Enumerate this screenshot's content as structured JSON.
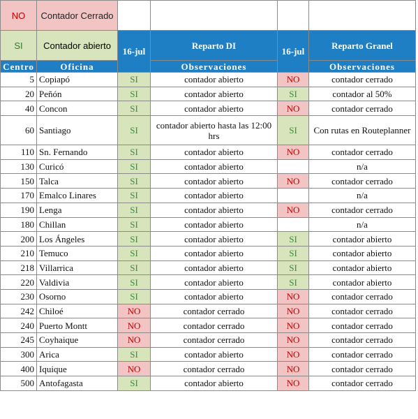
{
  "legend": {
    "no_label": "NO",
    "no_text": "Contador Cerrado",
    "si_label": "SI",
    "si_text": "Contador abierto"
  },
  "headers": {
    "date_di": "16-jul",
    "reparto_di": "Reparto DI",
    "date_granel": "16-jul",
    "reparto_granel": "Reparto Granel",
    "centro": "Centro",
    "oficina": "Oficina",
    "observaciones_di": "Observaciones",
    "observaciones_granel": "Observaciones"
  },
  "colors": {
    "header_blue": "#1f7fc4",
    "si_green": "#d8e5bc",
    "no_red": "#f2c4c4"
  },
  "rows": [
    {
      "centro": "5",
      "oficina": "Copiapó",
      "di": "SI",
      "di_obs": "contador  abierto",
      "granel": "NO",
      "granel_obs": "contador cerrado"
    },
    {
      "centro": "20",
      "oficina": "Peñón",
      "di": "SI",
      "di_obs": "contador  abierto",
      "granel": "SI",
      "granel_obs": "contador al 50%"
    },
    {
      "centro": "40",
      "oficina": "Concon",
      "di": "SI",
      "di_obs": "contador  abierto",
      "granel": "NO",
      "granel_obs": "contador cerrado"
    },
    {
      "centro": "60",
      "oficina": "Santiago",
      "di": "SI",
      "di_obs": "contador  abierto hasta las 12:00 hrs",
      "granel": "SI",
      "granel_obs": "Con  rutas en Routeplanner"
    },
    {
      "centro": "110",
      "oficina": "Sn. Fernando",
      "di": "SI",
      "di_obs": "contador  abierto",
      "granel": "NO",
      "granel_obs": "contador cerrado"
    },
    {
      "centro": "130",
      "oficina": "Curicó",
      "di": "SI",
      "di_obs": "contador  abierto",
      "granel": "",
      "granel_obs": "n/a"
    },
    {
      "centro": "150",
      "oficina": "Talca",
      "di": "SI",
      "di_obs": "contador  abierto",
      "granel": "NO",
      "granel_obs": "contador cerrado"
    },
    {
      "centro": "170",
      "oficina": "Emalco Linares",
      "di": "SI",
      "di_obs": "contador  abierto",
      "granel": "",
      "granel_obs": "n/a"
    },
    {
      "centro": "190",
      "oficina": "Lenga",
      "di": "SI",
      "di_obs": "contador  abierto",
      "granel": "NO",
      "granel_obs": "contador cerrado"
    },
    {
      "centro": "180",
      "oficina": "Chillan",
      "di": "SI",
      "di_obs": "contador  abierto",
      "granel": "",
      "granel_obs": "n/a"
    },
    {
      "centro": "200",
      "oficina": "Los Ángeles",
      "di": "SI",
      "di_obs": "contador  abierto",
      "granel": "SI",
      "granel_obs": "contador  abierto"
    },
    {
      "centro": "210",
      "oficina": "Temuco",
      "di": "SI",
      "di_obs": "contador  abierto",
      "granel": "SI",
      "granel_obs": "contador  abierto"
    },
    {
      "centro": "218",
      "oficina": "Villarrica",
      "di": "SI",
      "di_obs": "contador  abierto",
      "granel": "SI",
      "granel_obs": "contador  abierto"
    },
    {
      "centro": "220",
      "oficina": "Valdivia",
      "di": "SI",
      "di_obs": "contador  abierto",
      "granel": "SI",
      "granel_obs": "contador  abierto"
    },
    {
      "centro": "230",
      "oficina": "Osorno",
      "di": "SI",
      "di_obs": "contador  abierto",
      "granel": "NO",
      "granel_obs": "contador cerrado"
    },
    {
      "centro": "242",
      "oficina": "Chiloé",
      "di": "NO",
      "di_obs": "contador cerrado",
      "granel": "NO",
      "granel_obs": "contador cerrado"
    },
    {
      "centro": "240",
      "oficina": "Puerto Montt",
      "di": "NO",
      "di_obs": "contador cerrado",
      "granel": "NO",
      "granel_obs": "contador cerrado"
    },
    {
      "centro": "245",
      "oficina": "Coyhaique",
      "di": "NO",
      "di_obs": "contador cerrado",
      "granel": "NO",
      "granel_obs": "contador cerrado"
    },
    {
      "centro": "300",
      "oficina": "Arica",
      "di": "SI",
      "di_obs": "contador  abierto",
      "granel": "NO",
      "granel_obs": "contador cerrado"
    },
    {
      "centro": "400",
      "oficina": "Iquique",
      "di": "NO",
      "di_obs": "contador cerrado",
      "granel": "NO",
      "granel_obs": "contador cerrado"
    },
    {
      "centro": "500",
      "oficina": "Antofagasta",
      "di": "SI",
      "di_obs": "contador  abierto",
      "granel": "NO",
      "granel_obs": "contador cerrado"
    }
  ]
}
